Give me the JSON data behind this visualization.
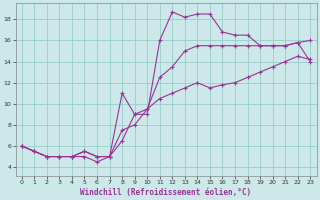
{
  "xlabel": "Windchill (Refroidissement éolien,°C)",
  "bg_color": "#cce8e8",
  "grid_color": "#99cccc",
  "line_color": "#993399",
  "x_ticks": [
    0,
    1,
    2,
    3,
    4,
    5,
    6,
    7,
    8,
    9,
    10,
    11,
    12,
    13,
    14,
    15,
    16,
    17,
    18,
    19,
    20,
    21,
    22,
    23
  ],
  "y_ticks": [
    4,
    6,
    8,
    10,
    12,
    14,
    16,
    18
  ],
  "xlim": [
    -0.5,
    23.5
  ],
  "ylim": [
    3.2,
    19.5
  ],
  "line1_x": [
    0,
    1,
    2,
    3,
    4,
    5,
    6,
    7,
    8,
    9,
    10,
    11,
    12,
    13,
    14,
    15,
    16,
    17,
    18,
    19,
    20,
    21,
    22,
    23
  ],
  "line1_y": [
    6.0,
    5.5,
    5.0,
    5.0,
    5.0,
    5.0,
    4.5,
    5.0,
    6.5,
    9.0,
    9.0,
    16.0,
    18.7,
    18.2,
    18.5,
    18.5,
    16.8,
    16.5,
    16.5,
    15.5,
    15.5,
    15.5,
    15.8,
    14.0
  ],
  "line2_x": [
    0,
    1,
    2,
    3,
    4,
    5,
    6,
    7,
    8,
    9,
    10,
    11,
    12,
    13,
    14,
    15,
    16,
    17,
    18,
    19,
    20,
    21,
    22,
    23
  ],
  "line2_y": [
    6.0,
    5.5,
    5.0,
    5.0,
    5.0,
    5.5,
    5.0,
    5.0,
    11.0,
    9.0,
    9.5,
    12.5,
    13.5,
    15.0,
    15.5,
    15.5,
    15.5,
    15.5,
    15.5,
    15.5,
    15.5,
    15.5,
    15.8,
    16.0
  ],
  "line3_x": [
    0,
    1,
    2,
    3,
    4,
    5,
    6,
    7,
    8,
    9,
    10,
    11,
    12,
    13,
    14,
    15,
    16,
    17,
    18,
    19,
    20,
    21,
    22,
    23
  ],
  "line3_y": [
    6.0,
    5.5,
    5.0,
    5.0,
    5.0,
    5.5,
    5.0,
    5.0,
    7.5,
    8.0,
    9.5,
    10.5,
    11.0,
    11.5,
    12.0,
    11.5,
    11.8,
    12.0,
    12.5,
    13.0,
    13.5,
    14.0,
    14.5,
    14.2
  ]
}
